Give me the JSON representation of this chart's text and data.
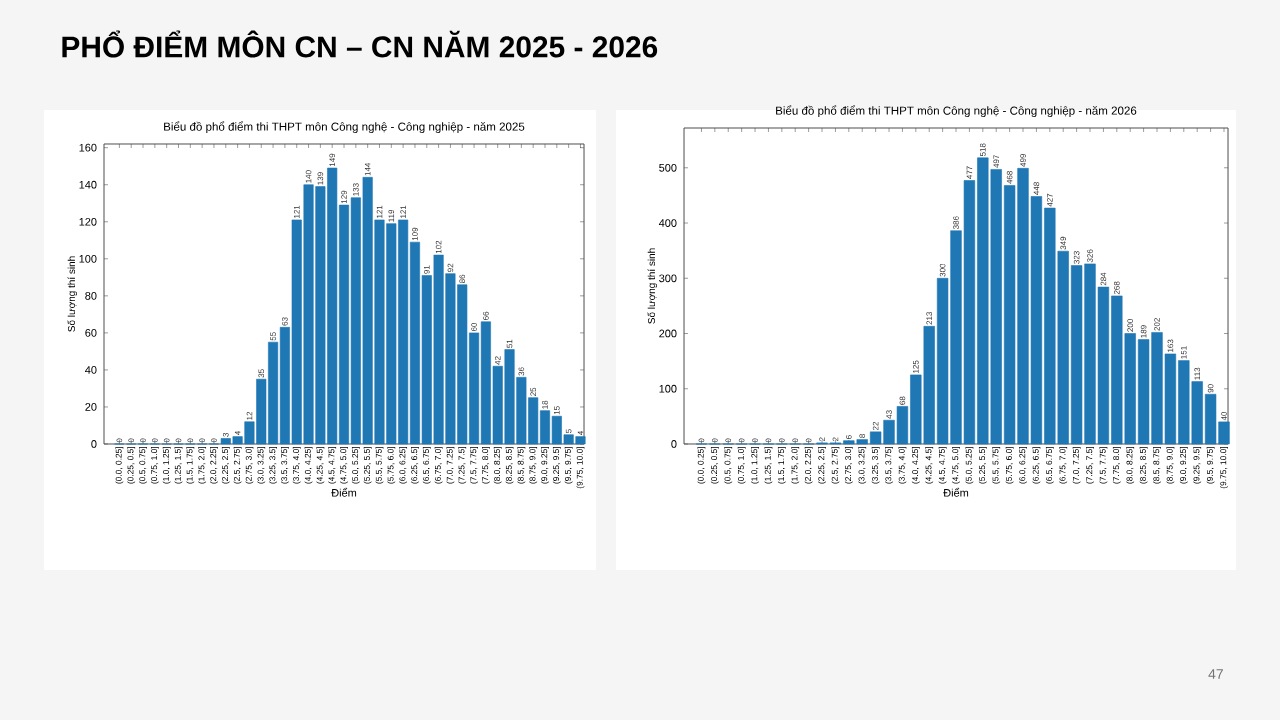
{
  "chart_data": [
    {
      "type": "bar",
      "title": "Biểu đồ phổ điểm thi THPT môn Công nghệ - Công nghiệp - năm 2025",
      "xlabel": "Điểm",
      "ylabel": "Số lượng thí sinh",
      "annotations": [
        "PHỔ ĐIỂM MÔN CN – CN NĂM 2025 - 2026"
      ],
      "categories": [
        "(0.0, 0.25]",
        "(0.25, 0.5]",
        "(0.5, 0.75]",
        "(0.75, 1.0]",
        "(1.0, 1.25]",
        "(1.25, 1.5]",
        "(1.5, 1.75]",
        "(1.75, 2.0]",
        "(2.0, 2.25]",
        "(2.25, 2.5]",
        "(2.5, 2.75]",
        "(2.75, 3.0]",
        "(3.0, 3.25]",
        "(3.25, 3.5]",
        "(3.5, 3.75]",
        "(3.75, 4.0]",
        "(4.0, 4.25]",
        "(4.25, 4.5]",
        "(4.5, 4.75]",
        "(4.75, 5.0]",
        "(5.0, 5.25]",
        "(5.25, 5.5]",
        "(5.5, 5.75]",
        "(5.75, 6.0]",
        "(6.0, 6.25]",
        "(6.25, 6.5]",
        "(6.5, 6.75]",
        "(6.75, 7.0]",
        "(7.0, 7.25]",
        "(7.25, 7.5]",
        "(7.5, 7.75]",
        "(7.75, 8.0]",
        "(8.0, 8.25]",
        "(8.25, 8.5]",
        "(8.5, 8.75]",
        "(8.75, 9.0]",
        "(9.0, 9.25]",
        "(9.25, 9.5]",
        "(9.5, 9.75]",
        "(9.75, 10.0]"
      ],
      "values": [
        0,
        0,
        0,
        0,
        0,
        0,
        0,
        0,
        0,
        3,
        4,
        12,
        35,
        55,
        63,
        121,
        140,
        139,
        149,
        129,
        133,
        144,
        121,
        119,
        121,
        109,
        91,
        102,
        92,
        86,
        60,
        66,
        42,
        51,
        36,
        25,
        18,
        15,
        5,
        4
      ],
      "color": "#1f77b4",
      "data_labels": true,
      "ylim": [
        0,
        162
      ],
      "yticks": [
        0,
        20,
        40,
        60,
        80,
        100,
        120,
        140,
        160
      ]
    },
    {
      "type": "bar",
      "title": "Biểu đồ phổ điểm thi THPT môn Công nghệ - Công nghiệp - năm 2026",
      "xlabel": "Điểm",
      "ylabel": "Số lượng thí sinh",
      "annotations": [
        "47"
      ],
      "categories": [
        "(0.0, 0.25]",
        "(0.25, 0.5]",
        "(0.5, 0.75]",
        "(0.75, 1.0]",
        "(1.0, 1.25]",
        "(1.25, 1.5]",
        "(1.5, 1.75]",
        "(1.75, 2.0]",
        "(2.0, 2.25]",
        "(2.25, 2.5]",
        "(2.5, 2.75]",
        "(2.75, 3.0]",
        "(3.0, 3.25]",
        "(3.25, 3.5]",
        "(3.5, 3.75]",
        "(3.75, 4.0]",
        "(4.0, 4.25]",
        "(4.25, 4.5]",
        "(4.5, 4.75]",
        "(4.75, 5.0]",
        "(5.0, 5.25]",
        "(5.25, 5.5]",
        "(5.5, 5.75]",
        "(5.75, 6.0]",
        "(6.0, 6.25]",
        "(6.25, 6.5]",
        "(6.5, 6.75]",
        "(6.75, 7.0]",
        "(7.0, 7.25]",
        "(7.25, 7.5]",
        "(7.5, 7.75]",
        "(7.75, 8.0]",
        "(8.0, 8.25]",
        "(8.25, 8.5]",
        "(8.5, 8.75]",
        "(8.75, 9.0]",
        "(9.0, 9.25]",
        "(9.25, 9.5]",
        "(9.5, 9.75]",
        "(9.75, 10.0]"
      ],
      "values": [
        0,
        0,
        0,
        0,
        0,
        0,
        0,
        0,
        0,
        2,
        2,
        6,
        8,
        22,
        43,
        68,
        125,
        213,
        300,
        386,
        477,
        518,
        497,
        468,
        499,
        448,
        427,
        349,
        323,
        326,
        284,
        268,
        200,
        189,
        202,
        163,
        151,
        113,
        90,
        40
      ],
      "color": "#1f77b4",
      "data_labels": true,
      "ylim": [
        0,
        572
      ],
      "yticks": [
        0,
        100,
        200,
        300,
        400,
        500
      ]
    }
  ]
}
